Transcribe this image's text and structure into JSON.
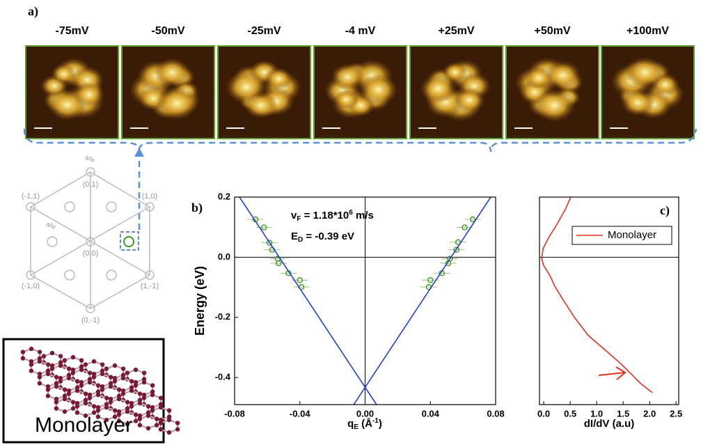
{
  "panel_a": {
    "label": "a)",
    "images": [
      "-75mV",
      "-50mV",
      "-25mV",
      "-4 mV",
      "+25mV",
      "+50mV",
      "+100mV"
    ]
  },
  "lattice": {
    "points": [
      "(0,1)",
      "(1,0)",
      "(-1,1)",
      "(0,0)",
      "(-1,0)",
      "(1,-1)",
      "(0,-1)"
    ],
    "spacing_labels": [
      [
        "4q",
        "F"
      ],
      [
        "4q",
        "F"
      ]
    ]
  },
  "inset": {
    "label": "Monolayer"
  },
  "chart_data": [
    {
      "type": "scatter",
      "panel_label": "b)",
      "ylabel": "Energy (eV)",
      "xlabel": [
        "q",
        "E",
        " (Å",
        "-1",
        ")"
      ],
      "annotations": [
        [
          "v",
          "F",
          " = 1.18*10",
          "6",
          " m/s"
        ],
        [
          "E",
          "D",
          " = -0.39 eV"
        ]
      ],
      "xlim": [
        -0.08,
        0.08
      ],
      "xticks": [
        -0.08,
        -0.04,
        {
          "value": 0,
          "label": "0.00"
        },
        0.04,
        0.08
      ],
      "ylim": [
        -0.49,
        0.2
      ],
      "yticks": [
        0.2,
        {
          "value": 0,
          "label": "0.0"
        },
        -0.2,
        -0.4
      ],
      "series": [
        {
          "mode": "markers",
          "color": "#4e9a2a",
          "x": [
            -0.0672,
            -0.062,
            -0.0587,
            -0.057,
            -0.0536,
            -0.053,
            -0.047,
            -0.04,
            -0.039,
            0.066,
            0.061,
            0.057,
            0.056,
            0.052,
            0.051,
            0.047,
            0.04,
            0.039
          ],
          "values": [
            0.126,
            0.099,
            0.048,
            0.025,
            -0.005,
            -0.02,
            -0.053,
            -0.076,
            -0.099,
            0.126,
            0.099,
            0.05,
            0.025,
            -0.005,
            -0.02,
            -0.053,
            -0.076,
            -0.099
          ],
          "xerr": [
            0.005,
            0.005,
            0.005,
            0.005,
            0.005,
            0.005,
            0.005,
            0.005,
            0.005,
            0.005,
            0.005,
            0.005,
            0.005,
            0.005,
            0.005,
            0.005,
            0.005,
            0.005
          ]
        },
        {
          "mode": "line",
          "color": "#1f3fd8",
          "x": [
            -0.077,
            0.007
          ],
          "values": [
            0.2,
            -0.49
          ]
        },
        {
          "mode": "line",
          "color": "#1f3fd8",
          "x": [
            0.077,
            -0.007
          ],
          "values": [
            0.2,
            -0.49
          ]
        }
      ]
    },
    {
      "type": "line",
      "panel_label": "c)",
      "xlabel": "dI/dV (a.u)",
      "legend": "upper right",
      "xlim": [
        -0.08,
        2.55
      ],
      "xticks": [
        {
          "value": 0,
          "label": "0.0"
        },
        0.5,
        {
          "value": 1,
          "label": "1.0"
        },
        1.5,
        {
          "value": 2,
          "label": "2.0"
        },
        2.5
      ],
      "ylim": [
        -0.49,
        0.2
      ],
      "series": [
        {
          "name": "Monolayer",
          "color": "#e0321e",
          "x": [
            0.51,
            0.41,
            0.25,
            0.09,
            -0.01,
            -0.04,
            0,
            0.12,
            0.21,
            0.36,
            0.58,
            0.84,
            1.17,
            1.43,
            1.63,
            1.83,
            2.05
          ],
          "values": [
            0.2,
            0.16,
            0.11,
            0.064,
            0.03,
            -0.005,
            -0.028,
            -0.062,
            -0.097,
            -0.14,
            -0.2,
            -0.26,
            -0.31,
            -0.35,
            -0.384,
            -0.42,
            -0.45
          ]
        }
      ]
    }
  ]
}
